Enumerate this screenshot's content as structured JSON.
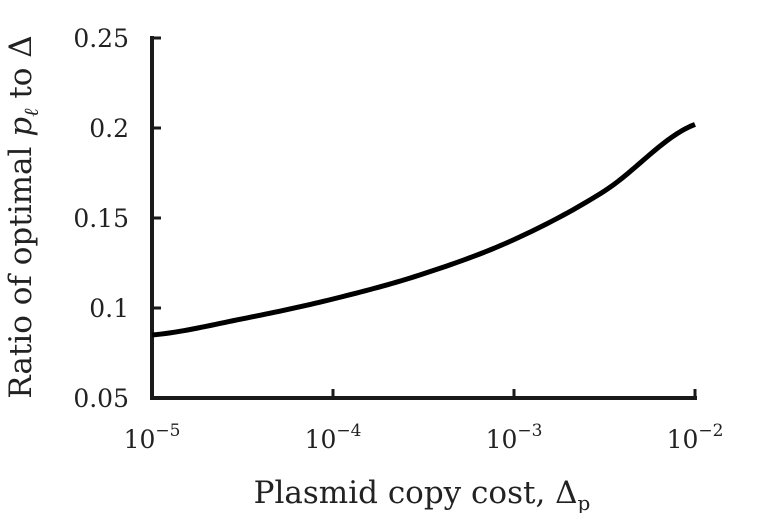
{
  "chart_data": {
    "type": "line",
    "x_scale": "log",
    "y_scale": "linear",
    "xlim": [
      1e-05,
      0.01
    ],
    "ylim": [
      0.05,
      0.25
    ],
    "grid": false,
    "xlabel": {
      "text": "Plasmid copy cost, Δ",
      "subscript": "p"
    },
    "ylabel": {
      "prefix": "Ratio of optimal ",
      "var": "p",
      "subscript": "ℓ",
      "suffix": " to Δ"
    },
    "x_ticks": [
      {
        "value": 1e-05,
        "base": "10",
        "exp": "−5"
      },
      {
        "value": 0.0001,
        "base": "10",
        "exp": "−4"
      },
      {
        "value": 0.001,
        "base": "10",
        "exp": "−3"
      },
      {
        "value": 0.01,
        "base": "10",
        "exp": "−2"
      }
    ],
    "y_ticks": [
      {
        "value": 0.05,
        "label": "0.05"
      },
      {
        "value": 0.1,
        "label": "0.1"
      },
      {
        "value": 0.15,
        "label": "0.15"
      },
      {
        "value": 0.2,
        "label": "0.2"
      },
      {
        "value": 0.25,
        "label": "0.25"
      }
    ],
    "series": [
      {
        "color": "#000000",
        "points": [
          {
            "x": 1e-05,
            "y": 0.085
          },
          {
            "x": 3.16e-05,
            "y": 0.094
          },
          {
            "x": 0.0001,
            "y": 0.105
          },
          {
            "x": 0.000316,
            "y": 0.119
          },
          {
            "x": 0.001,
            "y": 0.138
          },
          {
            "x": 0.00316,
            "y": 0.165
          },
          {
            "x": 0.01,
            "y": 0.202
          }
        ]
      }
    ]
  }
}
